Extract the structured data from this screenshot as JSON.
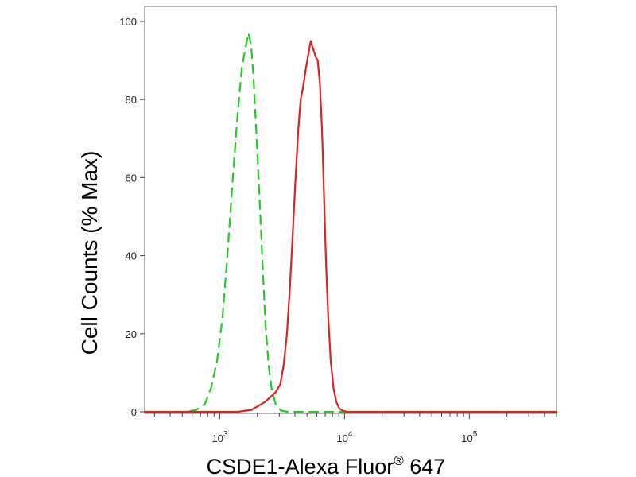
{
  "chart_data": {
    "type": "line",
    "xscale": "log",
    "xlim": [
      250,
      500000
    ],
    "ylim": [
      0,
      100
    ],
    "xlabel": "CSDE1-Alexa Fluor",
    "xlabel_sup": "®",
    "xlabel_suffix": " 647",
    "ylabel": "Cell Counts (% Max)",
    "yticks": [
      {
        "value": 0,
        "label": "0"
      },
      {
        "value": 20,
        "label": "20"
      },
      {
        "value": 40,
        "label": "40"
      },
      {
        "value": 60,
        "label": "60"
      },
      {
        "value": 80,
        "label": "80"
      },
      {
        "value": 100,
        "label": "100"
      }
    ],
    "xticks": [
      {
        "value": 1000,
        "base": "10",
        "exp": "3"
      },
      {
        "value": 10000,
        "base": "10",
        "exp": "4"
      },
      {
        "value": 100000,
        "base": "10",
        "exp": "5"
      }
    ],
    "grid": false,
    "series": [
      {
        "color": "#22cc22",
        "dash": true,
        "points": [
          [
            250,
            0
          ],
          [
            550,
            0
          ],
          [
            650,
            0.5
          ],
          [
            760,
            2
          ],
          [
            850,
            6
          ],
          [
            950,
            13
          ],
          [
            1050,
            24
          ],
          [
            1150,
            40
          ],
          [
            1260,
            58
          ],
          [
            1380,
            75
          ],
          [
            1500,
            88
          ],
          [
            1620,
            94
          ],
          [
            1700,
            97
          ],
          [
            1780,
            94
          ],
          [
            1860,
            86
          ],
          [
            1960,
            72
          ],
          [
            2080,
            55
          ],
          [
            2200,
            38
          ],
          [
            2320,
            23
          ],
          [
            2460,
            12
          ],
          [
            2600,
            6
          ],
          [
            2800,
            2
          ],
          [
            3100,
            0.3
          ],
          [
            3500,
            0
          ],
          [
            500000,
            0
          ]
        ]
      },
      {
        "color": "#dd2222",
        "dash": false,
        "points": [
          [
            250,
            0
          ],
          [
            750,
            0
          ],
          [
            1400,
            0
          ],
          [
            1800,
            0.5
          ],
          [
            2300,
            2.5
          ],
          [
            2800,
            5
          ],
          [
            3050,
            7
          ],
          [
            3250,
            12
          ],
          [
            3450,
            20
          ],
          [
            3650,
            32
          ],
          [
            3850,
            46
          ],
          [
            4050,
            60
          ],
          [
            4250,
            72
          ],
          [
            4450,
            80
          ],
          [
            4700,
            84
          ],
          [
            4900,
            88
          ],
          [
            5150,
            92
          ],
          [
            5350,
            95
          ],
          [
            5600,
            93
          ],
          [
            5850,
            91
          ],
          [
            6100,
            90
          ],
          [
            6350,
            84
          ],
          [
            6600,
            72
          ],
          [
            6850,
            55
          ],
          [
            7100,
            38
          ],
          [
            7400,
            24
          ],
          [
            7750,
            13
          ],
          [
            8150,
            6
          ],
          [
            8600,
            2.5
          ],
          [
            9100,
            0.8
          ],
          [
            9800,
            0.2
          ],
          [
            10500,
            0
          ],
          [
            500000,
            0
          ]
        ]
      }
    ]
  }
}
